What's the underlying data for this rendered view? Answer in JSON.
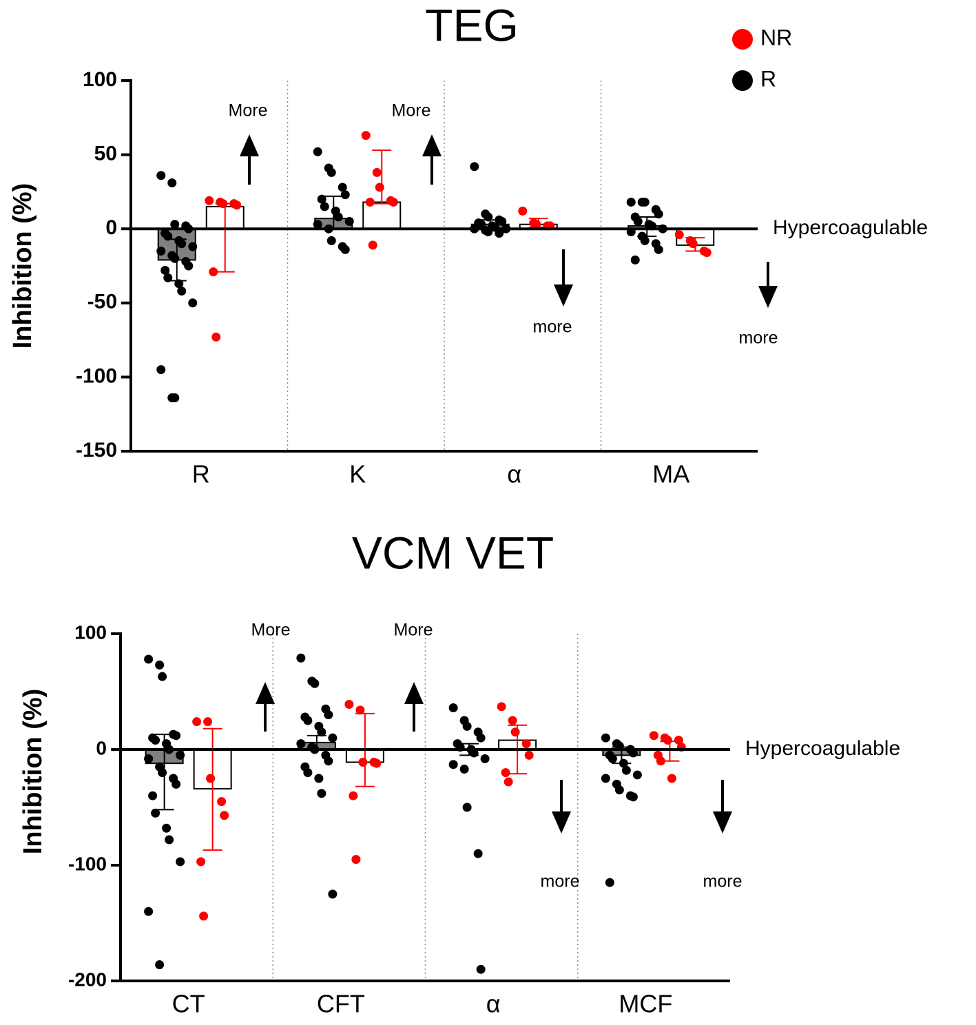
{
  "chart_data": [
    {
      "type": "bar",
      "title": "TEG",
      "ylabel": "Inhibition (%)",
      "categories": [
        "R",
        "K",
        "α",
        "MA"
      ],
      "ylim": [
        -150,
        100
      ],
      "yticks": [
        -150,
        -100,
        -50,
        0,
        50,
        100
      ],
      "zero_label": "Hypercoagulable",
      "annotations": [
        "More",
        "More",
        "more",
        "more"
      ],
      "legend": "top-right",
      "series": [
        {
          "name": "NR",
          "color": "#ff0000",
          "bar_color": "#ffffff",
          "values": [
            15,
            18,
            3,
            -11
          ],
          "lower": [
            -29,
            17,
            1,
            -15
          ],
          "upper": [
            17,
            53,
            7,
            -6
          ],
          "points": [
            [
              19,
              18,
              17,
              17,
              16,
              -29,
              -73
            ],
            [
              63,
              38,
              28,
              19,
              18,
              18,
              -11
            ],
            [
              12,
              4,
              3,
              2,
              2
            ],
            [
              -4,
              -8,
              -10,
              -15,
              -16
            ]
          ]
        },
        {
          "name": "R",
          "color": "#000000",
          "bar_color": "#808080",
          "values": [
            -21,
            7,
            3,
            2
          ],
          "lower": [
            -35,
            0,
            0,
            -5
          ],
          "upper": [
            -7,
            22,
            6,
            8
          ],
          "points": [
            [
              36,
              31,
              3,
              2,
              0,
              -3,
              -5,
              -8,
              -10,
              -12,
              -15,
              -18,
              -20,
              -22,
              -25,
              -28,
              -33,
              -37,
              -42,
              -50,
              -95,
              -114,
              -114
            ],
            [
              52,
              41,
              38,
              28,
              23,
              20,
              15,
              12,
              8,
              5,
              3,
              0,
              -8,
              -12,
              -14
            ],
            [
              42,
              10,
              8,
              6,
              5,
              4,
              3,
              2,
              1,
              0,
              0,
              -1,
              -2,
              -3
            ],
            [
              18,
              18,
              18,
              13,
              10,
              8,
              5,
              3,
              2,
              0,
              -2,
              -5,
              -8,
              -10,
              -14,
              -21
            ]
          ]
        }
      ]
    },
    {
      "type": "bar",
      "title": "VCM VET",
      "ylabel": "Inhibition (%)",
      "categories": [
        "CT",
        "CFT",
        "α",
        "MCF"
      ],
      "ylim": [
        -200,
        100
      ],
      "yticks": [
        -200,
        -100,
        0,
        100
      ],
      "zero_label": "Hypercoagulable",
      "annotations": [
        "More",
        "More",
        "more",
        "more"
      ],
      "series": [
        {
          "color": "#ff0000",
          "bar_color": "#ffffff",
          "values": [
            -34,
            -11,
            8,
            0
          ],
          "lower": [
            -87,
            -32,
            -21,
            -10
          ],
          "upper": [
            18,
            31,
            21,
            7
          ],
          "points": [
            [
              24,
              24,
              -25,
              -45,
              -57,
              -97,
              -144
            ],
            [
              39,
              34,
              -11,
              -11,
              -12,
              -40,
              -95
            ],
            [
              37,
              25,
              15,
              5,
              -5,
              -20,
              -28
            ],
            [
              12,
              10,
              8,
              8,
              2,
              -5,
              -10,
              -25
            ]
          ]
        },
        {
          "color": "#000000",
          "bar_color": "#808080",
          "values": [
            -12,
            6,
            0,
            -5
          ],
          "lower": [
            -52,
            0,
            -5,
            -12
          ],
          "upper": [
            13,
            12,
            5,
            2
          ],
          "points": [
            [
              78,
              73,
              63,
              13,
              12,
              10,
              8,
              5,
              0,
              -5,
              -8,
              -15,
              -20,
              -25,
              -30,
              -40,
              -55,
              -68,
              -78,
              -97,
              -140,
              -186
            ],
            [
              79,
              59,
              57,
              35,
              30,
              28,
              25,
              20,
              15,
              10,
              5,
              2,
              0,
              -5,
              -10,
              -15,
              -20,
              -25,
              -38,
              -125
            ],
            [
              36,
              25,
              20,
              15,
              10,
              5,
              2,
              0,
              -3,
              -8,
              -13,
              -17,
              -50,
              -90,
              -190
            ],
            [
              10,
              5,
              3,
              0,
              -3,
              -5,
              -8,
              -12,
              -18,
              -22,
              -25,
              -30,
              -35,
              -40,
              -41,
              -115
            ]
          ]
        }
      ]
    }
  ]
}
